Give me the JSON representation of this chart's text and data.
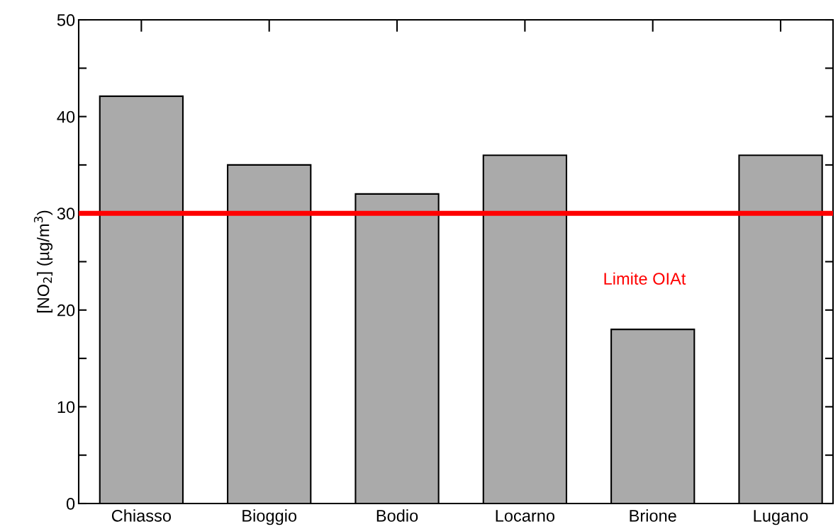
{
  "chart_data": {
    "type": "bar",
    "ylabel": "[NO$_{2}$] (µg/m$^{3}$)",
    "categories": [
      "Chiasso",
      "Bioggio",
      "Bodio",
      "Locarno",
      "Brione",
      "Lugano"
    ],
    "values": [
      42.1,
      35,
      32,
      36,
      18,
      36
    ],
    "color": "#aaaaaa",
    "ylim": [
      0,
      50
    ],
    "yticks": [
      0,
      {
        "value": 5,
        "label": null
      },
      10,
      {
        "value": 15,
        "label": null
      },
      20,
      {
        "value": 25,
        "label": null
      },
      30,
      {
        "value": 35,
        "label": null
      },
      40,
      {
        "value": 45,
        "label": null
      },
      50
    ],
    "ref_lines": [
      {
        "axis": "y",
        "value": 30,
        "label": "Limite OIAt",
        "color": "#ff0000",
        "line_style": "solid"
      }
    ],
    "grid": false,
    "legend": false
  }
}
